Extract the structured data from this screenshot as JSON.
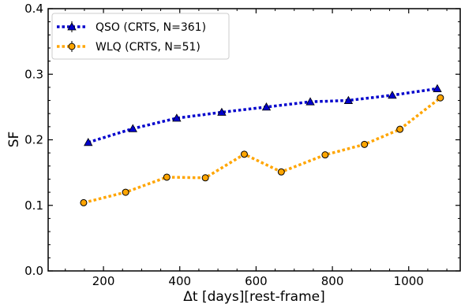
{
  "chart_data": {
    "type": "line",
    "title": "",
    "xlabel": "Δt [days][rest-frame]",
    "ylabel": "SF",
    "xlim": [
      55,
      1135
    ],
    "ylim": [
      0.0,
      0.4
    ],
    "x_ticks": [
      200,
      400,
      600,
      800,
      1000
    ],
    "x_tick_labels": [
      "200",
      "400",
      "600",
      "800",
      "1000"
    ],
    "y_ticks": [
      0.0,
      0.1,
      0.2,
      0.3,
      0.4
    ],
    "y_tick_labels": [
      "0.0",
      "0.1",
      "0.2",
      "0.3",
      "0.4"
    ],
    "grid": false,
    "legend_position": "top-left",
    "series": [
      {
        "name": "QSO (CRTS, N=361)",
        "color": "#0000cc",
        "marker": "triangle",
        "linestyle": "dotted",
        "x": [
          160,
          277,
          392,
          510,
          627,
          742,
          842,
          957,
          1075
        ],
        "y": [
          0.196,
          0.217,
          0.233,
          0.242,
          0.25,
          0.258,
          0.26,
          0.268,
          0.278
        ]
      },
      {
        "name": "WLQ (CRTS, N=51)",
        "color": "#ffa500",
        "marker": "circle",
        "linestyle": "dotted",
        "x": [
          148,
          258,
          366,
          467,
          569,
          666,
          781,
          884,
          977,
          1083
        ],
        "y": [
          0.104,
          0.12,
          0.143,
          0.142,
          0.178,
          0.151,
          0.177,
          0.193,
          0.216,
          0.264
        ]
      }
    ]
  }
}
